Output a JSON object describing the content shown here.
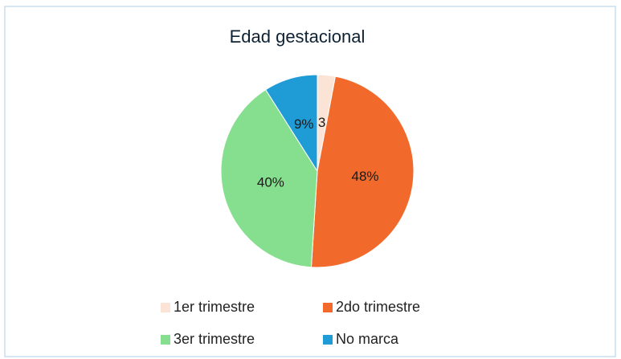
{
  "chart_data": {
    "type": "pie",
    "title": "Edad gestacional",
    "categories": [
      "1er trimestre",
      "2do trimestre",
      "3er trimestre",
      "No marca"
    ],
    "values": [
      3,
      48,
      40,
      9
    ],
    "value_labels": [
      "3",
      "48%",
      "40%",
      "9%"
    ],
    "colors": [
      "#fbe3d6",
      "#f26a2b",
      "#86df8e",
      "#1f9bd6"
    ],
    "legend": "bottom"
  }
}
